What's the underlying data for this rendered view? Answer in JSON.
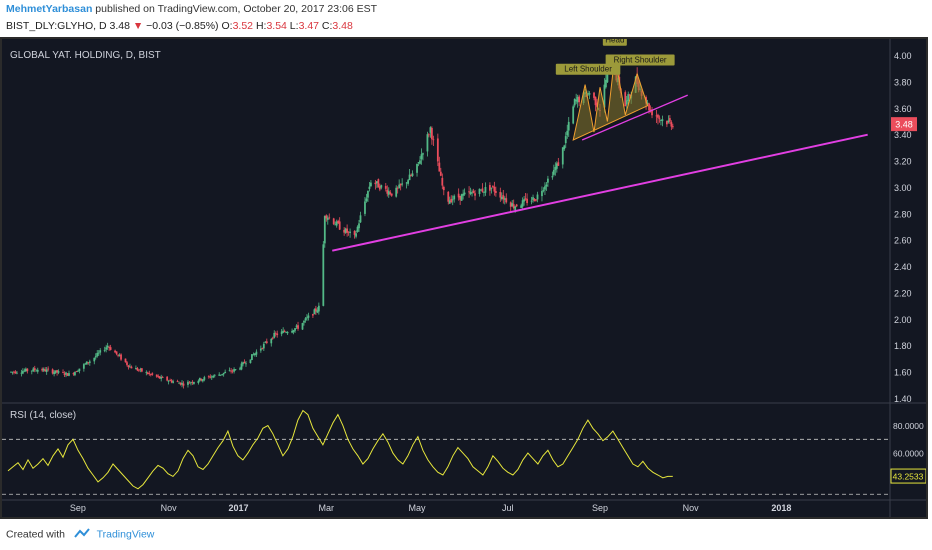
{
  "header": {
    "author": "MehmetYarbasan",
    "published_text": "published on TradingView.com, October 20, 2017 23:06 EST"
  },
  "symbol_bar": {
    "symbol": "BIST_DLY:GLYHO, D",
    "last": "3.48",
    "arrow": "▼",
    "change": "−0.03 (−0.85%)",
    "o_label": "O:",
    "o": "3.52",
    "h_label": "H:",
    "h": "3.54",
    "l_label": "L:",
    "l": "3.47",
    "c_label": "C:",
    "c": "3.48"
  },
  "footer": {
    "created": "Created with",
    "brand": "TradingView"
  },
  "colors": {
    "background": "#131722",
    "up": "#53b987",
    "down": "#eb4d5c",
    "trendline": "#e23fe3",
    "pattern_line": "#f0a030",
    "pattern_fill": "#8a7a2a",
    "rsi_line": "#e6e63c",
    "price_badge": "#eb4d5c"
  },
  "chart_data": [
    {
      "type": "candlestick",
      "title": "GLOBAL YAT. HOLDING, D, BIST",
      "x_ticks": [
        "Sep",
        "Nov",
        "2017",
        "Mar",
        "May",
        "Jul",
        "Sep",
        "Nov",
        "2018"
      ],
      "y_ticks": [
        "4.00",
        "3.80",
        "3.60",
        "3.40",
        "3.20",
        "3.00",
        "2.80",
        "2.60",
        "2.40",
        "2.20",
        "2.00",
        "1.80",
        "1.60",
        "1.40"
      ],
      "ylim": [
        1.38,
        4.05
      ],
      "last_price": "3.48",
      "close_series": [
        {
          "date": "2016-08-01",
          "close": 1.6
        },
        {
          "date": "2016-08-20",
          "close": 1.62
        },
        {
          "date": "2016-09-10",
          "close": 1.58
        },
        {
          "date": "2016-09-25",
          "close": 1.7
        },
        {
          "date": "2016-10-05",
          "close": 1.8
        },
        {
          "date": "2016-10-20",
          "close": 1.64
        },
        {
          "date": "2016-11-10",
          "close": 1.55
        },
        {
          "date": "2016-11-25",
          "close": 1.51
        },
        {
          "date": "2016-12-15",
          "close": 1.57
        },
        {
          "date": "2016-12-31",
          "close": 1.62
        },
        {
          "date": "2017-01-10",
          "close": 1.72
        },
        {
          "date": "2017-01-25",
          "close": 1.88
        },
        {
          "date": "2017-02-10",
          "close": 1.94
        },
        {
          "date": "2017-02-25",
          "close": 2.1
        },
        {
          "date": "2017-02-28",
          "close": 2.8
        },
        {
          "date": "2017-03-10",
          "close": 2.7
        },
        {
          "date": "2017-03-20",
          "close": 2.62
        },
        {
          "date": "2017-03-31",
          "close": 3.05
        },
        {
          "date": "2017-04-15",
          "close": 2.95
        },
        {
          "date": "2017-04-30",
          "close": 3.12
        },
        {
          "date": "2017-05-10",
          "close": 3.45
        },
        {
          "date": "2017-05-20",
          "close": 2.9
        },
        {
          "date": "2017-06-05",
          "close": 2.95
        },
        {
          "date": "2017-06-20",
          "close": 3.0
        },
        {
          "date": "2017-07-05",
          "close": 2.86
        },
        {
          "date": "2017-07-20",
          "close": 2.92
        },
        {
          "date": "2017-08-05",
          "close": 3.2
        },
        {
          "date": "2017-08-15",
          "close": 3.65
        },
        {
          "date": "2017-08-25",
          "close": 3.72
        },
        {
          "date": "2017-09-01",
          "close": 3.6
        },
        {
          "date": "2017-09-08",
          "close": 3.98
        },
        {
          "date": "2017-09-18",
          "close": 3.62
        },
        {
          "date": "2017-09-25",
          "close": 3.82
        },
        {
          "date": "2017-10-05",
          "close": 3.58
        },
        {
          "date": "2017-10-12",
          "close": 3.52
        },
        {
          "date": "2017-10-20",
          "close": 3.48
        }
      ],
      "trendlines": [
        {
          "name": "support",
          "points": [
            {
              "date": "2017-03-05",
              "price": 2.52
            },
            {
              "date": "2018-02-28",
              "price": 3.4
            }
          ]
        },
        {
          "name": "neckline",
          "points": [
            {
              "date": "2017-08-20",
              "price": 3.36
            },
            {
              "date": "2017-10-30",
              "price": 3.7
            }
          ]
        }
      ],
      "annotations": [
        "Left Shoulder",
        "Head",
        "Right Shoulder"
      ]
    },
    {
      "type": "line",
      "title": "RSI (14, close)",
      "y_ticks": [
        "80.0000",
        "60.0000"
      ],
      "ylim": [
        28,
        95
      ],
      "bands": [
        70,
        30
      ],
      "last_value": "43.2533",
      "values": [
        47,
        50,
        53,
        48,
        55,
        49,
        52,
        56,
        51,
        58,
        63,
        57,
        66,
        70,
        62,
        56,
        49,
        44,
        39,
        42,
        46,
        52,
        48,
        44,
        40,
        36,
        34,
        37,
        42,
        47,
        51,
        49,
        45,
        43,
        47,
        56,
        62,
        58,
        50,
        48,
        52,
        58,
        64,
        69,
        76,
        65,
        58,
        55,
        60,
        66,
        71,
        78,
        80,
        74,
        66,
        58,
        63,
        72,
        84,
        91,
        88,
        78,
        72,
        66,
        74,
        82,
        88,
        80,
        70,
        63,
        58,
        52,
        56,
        63,
        69,
        74,
        68,
        60,
        55,
        52,
        58,
        66,
        72,
        62,
        55,
        50,
        46,
        44,
        50,
        58,
        64,
        60,
        56,
        50,
        47,
        44,
        50,
        58,
        54,
        49,
        46,
        44,
        48,
        55,
        60,
        56,
        52,
        58,
        62,
        55,
        50,
        52,
        58,
        64,
        70,
        78,
        84,
        78,
        74,
        69,
        72,
        76,
        70,
        64,
        58,
        52,
        50,
        54,
        49,
        46,
        44,
        42,
        43,
        43
      ]
    }
  ]
}
